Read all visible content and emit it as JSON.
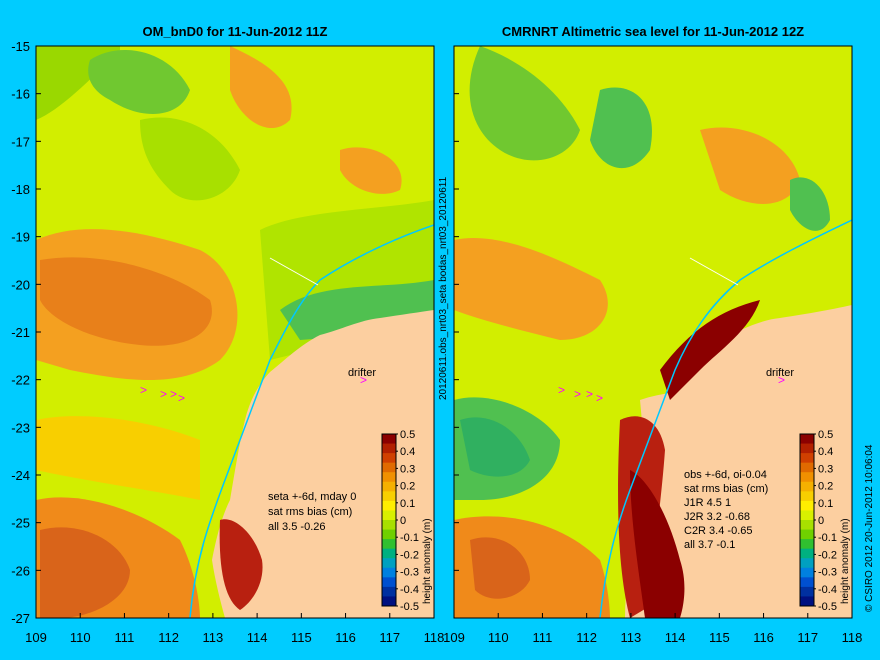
{
  "left_panel": {
    "title": "OM_bnD0 for 11-Jun-2012 11Z",
    "stats": [
      "seta +-6d, mday 0",
      "sat rms bias (cm)",
      "all 3.5 -0.26"
    ],
    "drifter_label": "drifter"
  },
  "right_panel": {
    "title": "CMRNRT Altimetric sea level  for 11-Jun-2012 12Z",
    "stats": [
      "obs +-6d, oi-0.04",
      "sat rms bias (cm)",
      "J1R   4.5 1",
      "J2R   3.2 -0.68",
      "C2R   3.4 -0.65",
      "all 3.7 -0.1"
    ],
    "drifter_label": "drifter"
  },
  "middle_vertical_text": "20120611.obs_nrt03_seta   bodas_nrt03_20120611",
  "right_vertical_text": "© CSIRO 2012   20-Jun-2012 10:06:04",
  "colorbar": {
    "label": "height anomaly (m)",
    "ticks": [
      "0.5",
      "0.4",
      "0.3",
      "0.2",
      "0.1",
      "0",
      "-0.1",
      "-0.2",
      "-0.3",
      "-0.4",
      "-0.5"
    ],
    "colors": [
      "#8b0000",
      "#b22000",
      "#d04000",
      "#e06a00",
      "#f09000",
      "#f5b000",
      "#f8cf00",
      "#ffee00",
      "#d8f000",
      "#a8e000",
      "#70d000",
      "#30c030",
      "#00b080",
      "#00a0c0",
      "#0080e0",
      "#0050d0",
      "#0030a0",
      "#001080"
    ]
  },
  "axes": {
    "x_ticks_left": [
      "109",
      "110",
      "111",
      "112",
      "113",
      "114",
      "115",
      "116",
      "117",
      "118"
    ],
    "x_ticks_right": [
      "109",
      "110",
      "111",
      "112",
      "113",
      "114",
      "115",
      "116",
      "117",
      "118"
    ],
    "y_ticks": [
      "-15",
      "-16",
      "-17",
      "-18",
      "-19",
      "-20",
      "-21",
      "-22",
      "-23",
      "-24",
      "-25",
      "-26",
      "-27"
    ]
  },
  "colors": {
    "land": "#fccfa0",
    "background": "#00ccff",
    "coastline_current": "#00c8ff",
    "drifter": "#ff00ff"
  }
}
